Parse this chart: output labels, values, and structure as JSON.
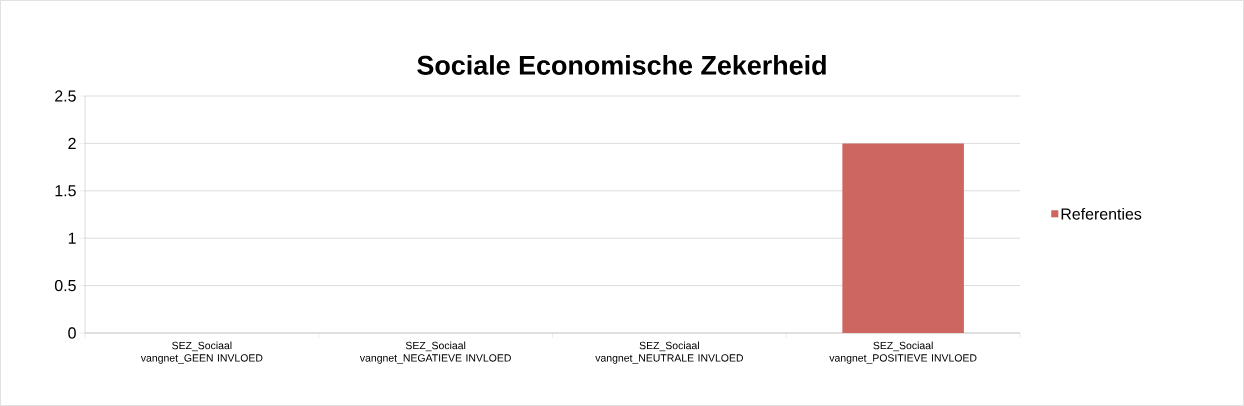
{
  "chart_data": {
    "type": "bar",
    "title": "Sociale Economische Zekerheid",
    "categories": [
      "SEZ_Sociaal vangnet_GEEN INVLOED",
      "SEZ_Sociaal vangnet_NEGATIEVE INVLOED",
      "SEZ_Sociaal vangnet_NEUTRALE INVLOED",
      "SEZ_Sociaal vangnet_POSITIEVE INVLOED"
    ],
    "series": [
      {
        "name": "Referenties",
        "color": "#cd6660",
        "values": [
          0,
          0,
          0,
          2
        ]
      }
    ],
    "ylim": [
      0,
      2.5
    ],
    "yticks": [
      0,
      0.5,
      1,
      1.5,
      2,
      2.5
    ],
    "grid": "y",
    "legend": "right"
  }
}
